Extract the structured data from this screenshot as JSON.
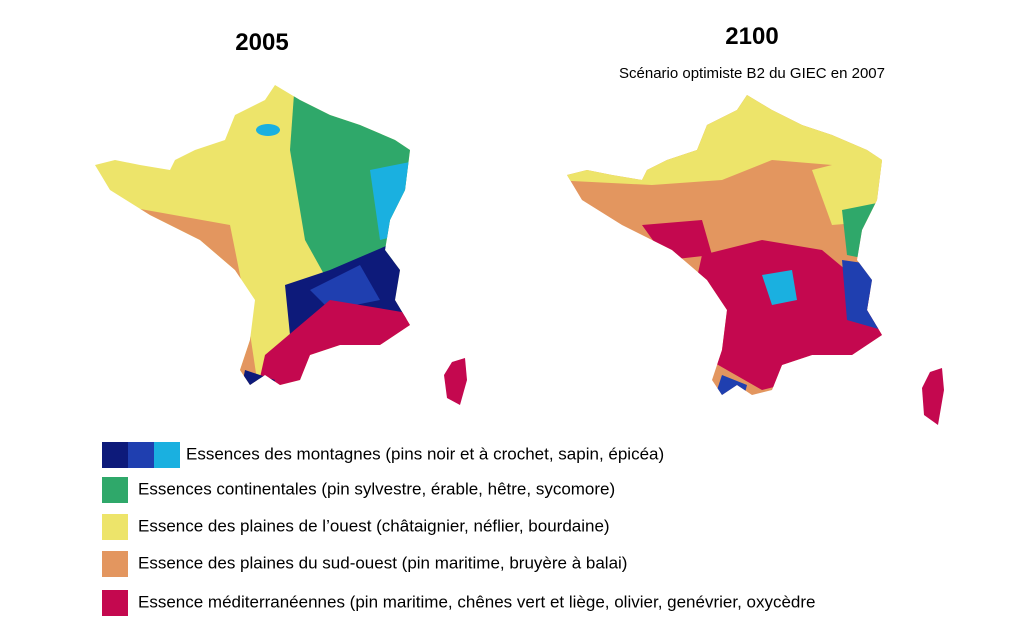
{
  "maps": [
    {
      "title": "2005"
    },
    {
      "title": "2100",
      "subtitle": "Scénario optimiste B2 du GIEC en 2007"
    }
  ],
  "legend": [
    {
      "label": "Essences des montagnes (pins noir et à crochet, sapin, épicéa)",
      "colors": [
        "#0d1a7a",
        "#1f3fb0",
        "#1ab0e0"
      ]
    },
    {
      "label": "Essences continentales (pin sylvestre, érable, hêtre, sycomore)",
      "colors": [
        "#2fa86a"
      ]
    },
    {
      "label": "Essence des plaines de l’ouest (châtaignier, néflier, bourdaine)",
      "colors": [
        "#ede46a"
      ]
    },
    {
      "label": "Essence des plaines du sud-ouest (pin maritime, bruyère à balai)",
      "colors": [
        "#e3965f"
      ]
    },
    {
      "label": "Essence méditerranéennes (pin maritime, chênes vert et liège, olivier, genévrier, oxycèdre",
      "colors": [
        "#c4084f"
      ]
    }
  ]
}
